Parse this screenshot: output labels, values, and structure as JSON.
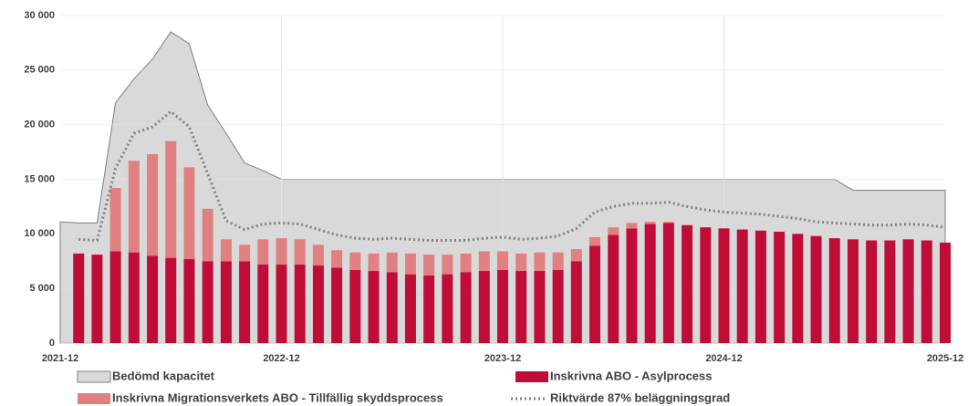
{
  "chart_data": {
    "type": "combo",
    "categories": [
      "2021-12",
      null,
      null,
      null,
      null,
      null,
      null,
      null,
      null,
      null,
      null,
      null,
      "2022-12",
      null,
      null,
      null,
      null,
      null,
      null,
      null,
      null,
      null,
      null,
      null,
      "2023-12",
      null,
      null,
      null,
      null,
      null,
      null,
      null,
      null,
      null,
      null,
      null,
      "2024-12",
      null,
      null,
      null,
      null,
      null,
      null,
      null,
      null,
      null,
      null,
      null,
      "2025-12"
    ],
    "ylim": [
      0,
      30000
    ],
    "yticks": [
      0,
      {
        "value": 5000,
        "label": "5 000"
      },
      {
        "value": 10000,
        "label": "10 000"
      },
      {
        "value": 15000,
        "label": "15 000"
      },
      {
        "value": 20000,
        "label": "20 000"
      },
      {
        "value": 25000,
        "label": "25 000"
      },
      {
        "value": 30000,
        "label": "30 000"
      }
    ],
    "grid": true,
    "series": [
      {
        "name": "Bedömd kapacitet",
        "kind": "area",
        "color": "#d9d9d9",
        "values": [
          11100,
          11000,
          11000,
          22000,
          24200,
          26000,
          28500,
          27400,
          21800,
          19200,
          16500,
          15800,
          15000,
          15000,
          15000,
          15000,
          15000,
          15000,
          15000,
          15000,
          15000,
          15000,
          15000,
          15000,
          15000,
          15000,
          15000,
          15000,
          15000,
          15000,
          15000,
          15000,
          15000,
          15000,
          15000,
          15000,
          15000,
          15000,
          15000,
          15000,
          15000,
          15000,
          15000,
          14000,
          14000,
          14000,
          14000,
          14000,
          14000
        ]
      },
      {
        "name": "Inskrivna ABO - Asylprocess",
        "kind": "bar",
        "color": "#c00d38",
        "values": [
          null,
          8200,
          8100,
          8400,
          8300,
          8000,
          7800,
          7700,
          7500,
          7500,
          7500,
          7200,
          7200,
          7200,
          7100,
          6900,
          6700,
          6600,
          6500,
          6300,
          6200,
          6300,
          6500,
          6600,
          6700,
          6600,
          6600,
          6700,
          7500,
          8900,
          9900,
          10500,
          10900,
          11000,
          10800,
          10600,
          10500,
          10400,
          10300,
          10200,
          10000,
          9800,
          9600,
          9500,
          9400,
          9400,
          9500,
          9400,
          9200
        ]
      },
      {
        "name": "Inskrivna Migrationsverkets ABO - Tillfällig skyddsprocess",
        "kind": "stack",
        "color": "#e08080",
        "values": [
          null,
          0,
          0,
          5800,
          8400,
          9300,
          10700,
          8400,
          4800,
          2000,
          1500,
          2300,
          2400,
          2300,
          1900,
          1600,
          1600,
          1600,
          1800,
          1900,
          1900,
          1800,
          1700,
          1800,
          1700,
          1600,
          1700,
          1600,
          1100,
          800,
          700,
          500,
          200,
          100,
          0,
          0,
          0,
          0,
          0,
          0,
          0,
          0,
          0,
          0,
          0,
          0,
          0,
          0,
          0
        ]
      },
      {
        "name": "Riktvärde 87% beläggningsgrad",
        "kind": "line",
        "color": "#808080",
        "values": [
          null,
          9500,
          9400,
          16000,
          19200,
          19800,
          21200,
          19800,
          15500,
          11200,
          10400,
          10900,
          11000,
          10900,
          10400,
          9900,
          9600,
          9500,
          9600,
          9500,
          9400,
          9400,
          9400,
          9600,
          9700,
          9500,
          9600,
          9800,
          10500,
          12000,
          12500,
          12800,
          12800,
          12900,
          12500,
          12200,
          12000,
          11900,
          11800,
          11600,
          11400,
          11100,
          11000,
          10900,
          10800,
          10800,
          10900,
          10800,
          10600
        ]
      }
    ]
  }
}
